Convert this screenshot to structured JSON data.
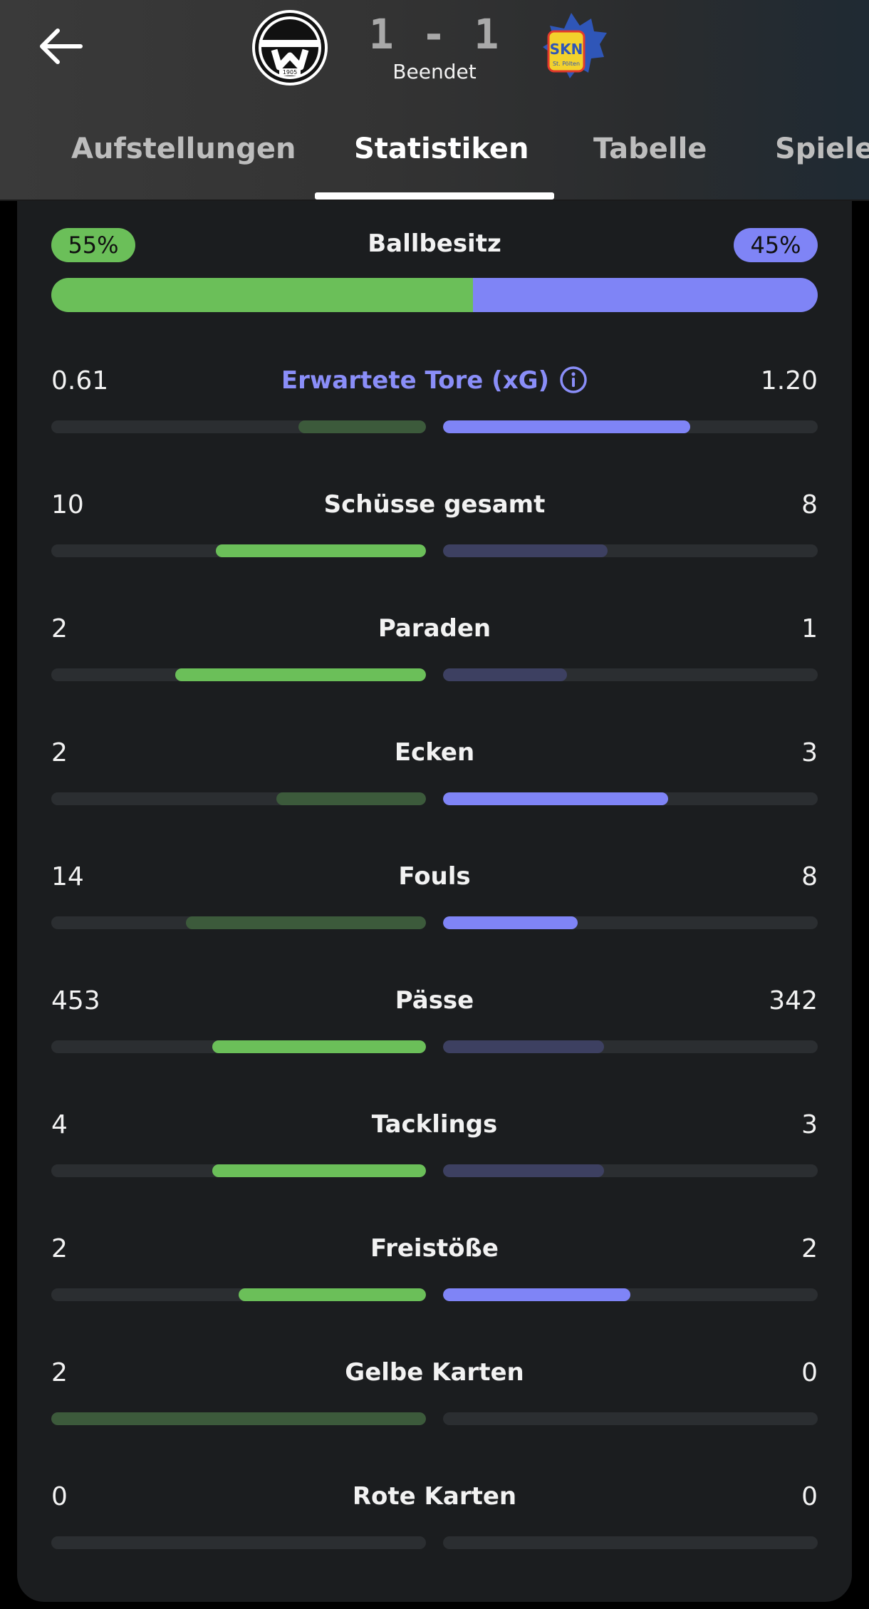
{
  "match": {
    "score": "1 - 1",
    "status": "Beendet",
    "home_logo": "scr-altach-logo",
    "home_logo_year": "1905",
    "away_logo": "skn-st-poelten-logo",
    "away_logo_text": "SKN",
    "away_logo_subtext": "St. Pölten"
  },
  "tabs": [
    {
      "label": "Aufstellungen",
      "active": false
    },
    {
      "label": "Statistiken",
      "active": true
    },
    {
      "label": "Tabelle",
      "active": false
    },
    {
      "label": "Spiele",
      "active": false
    }
  ],
  "colors": {
    "home": "#6bbf59",
    "home_dim": "#3c5a3b",
    "away": "#7f84f6",
    "away_dim": "#3d4061",
    "track": "#2b2e31",
    "xg_label": "#8a8ef8"
  },
  "possession": {
    "label": "Ballbesitz",
    "home": "55%",
    "away": "45%",
    "home_share": 55
  },
  "stats": [
    {
      "label": "Erwartete Tore (xG)",
      "home": "0.61",
      "away": "1.20",
      "home_fill": 0.34,
      "away_fill": 0.66,
      "leader": "away",
      "info": true
    },
    {
      "label": "Schüsse gesamt",
      "home": "10",
      "away": "8",
      "home_fill": 0.56,
      "away_fill": 0.44,
      "leader": "home"
    },
    {
      "label": "Paraden",
      "home": "2",
      "away": "1",
      "home_fill": 0.67,
      "away_fill": 0.33,
      "leader": "home"
    },
    {
      "label": "Ecken",
      "home": "2",
      "away": "3",
      "home_fill": 0.4,
      "away_fill": 0.6,
      "leader": "away"
    },
    {
      "label": "Fouls",
      "home": "14",
      "away": "8",
      "home_fill": 0.64,
      "away_fill": 0.36,
      "leader": "away"
    },
    {
      "label": "Pässe",
      "home": "453",
      "away": "342",
      "home_fill": 0.57,
      "away_fill": 0.43,
      "leader": "home"
    },
    {
      "label": "Tacklings",
      "home": "4",
      "away": "3",
      "home_fill": 0.57,
      "away_fill": 0.43,
      "leader": "home"
    },
    {
      "label": "Freistöße",
      "home": "2",
      "away": "2",
      "home_fill": 0.5,
      "away_fill": 0.5,
      "leader": "both"
    },
    {
      "label": "Gelbe Karten",
      "home": "2",
      "away": "0",
      "home_fill": 1.0,
      "away_fill": 0.0,
      "leader": "away"
    },
    {
      "label": "Rote Karten",
      "home": "0",
      "away": "0",
      "home_fill": 0.0,
      "away_fill": 0.0,
      "leader": "none"
    }
  ]
}
